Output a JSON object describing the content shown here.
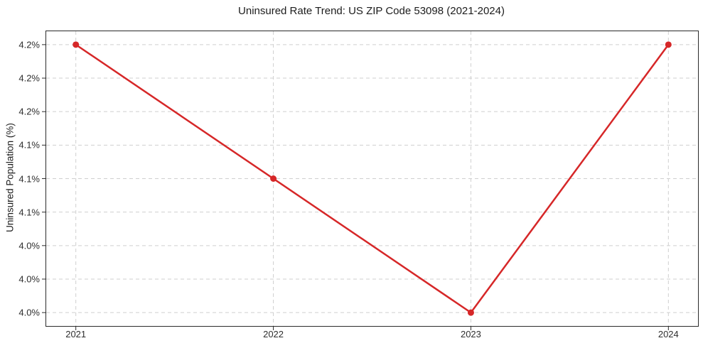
{
  "chart_data": {
    "type": "line",
    "title": "Uninsured Rate Trend: US ZIP Code 53098 (2021-2024)",
    "xlabel": "",
    "ylabel": "Uninsured Population (%)",
    "x": [
      2021,
      2022,
      2023,
      2024
    ],
    "values": [
      4.2,
      4.1,
      4.0,
      4.2
    ],
    "xlim": [
      2020.85,
      2024.15
    ],
    "ylim": [
      3.99,
      4.21
    ],
    "x_ticks": [
      {
        "value": 2021,
        "label": "2021"
      },
      {
        "value": 2022,
        "label": "2022"
      },
      {
        "value": 2023,
        "label": "2023"
      },
      {
        "value": 2024,
        "label": "2024"
      }
    ],
    "y_ticks": [
      {
        "value": 4.2,
        "label": "4.2%"
      },
      {
        "value": 4.175,
        "label": "4.2%"
      },
      {
        "value": 4.15,
        "label": "4.2%"
      },
      {
        "value": 4.125,
        "label": "4.1%"
      },
      {
        "value": 4.1,
        "label": "4.1%"
      },
      {
        "value": 4.075,
        "label": "4.1%"
      },
      {
        "value": 4.05,
        "label": "4.0%"
      },
      {
        "value": 4.025,
        "label": "4.0%"
      },
      {
        "value": 4.0,
        "label": "4.0%"
      }
    ],
    "grid": true,
    "legend": "none",
    "colors": {
      "line": "#d62728",
      "marker": "#d62728",
      "grid": "#cfcfcf",
      "frame": "#2a2a2a",
      "text": "#1c1c1c",
      "background": "#ffffff"
    },
    "marker_style": "circle",
    "marker_radius": 4.5
  }
}
